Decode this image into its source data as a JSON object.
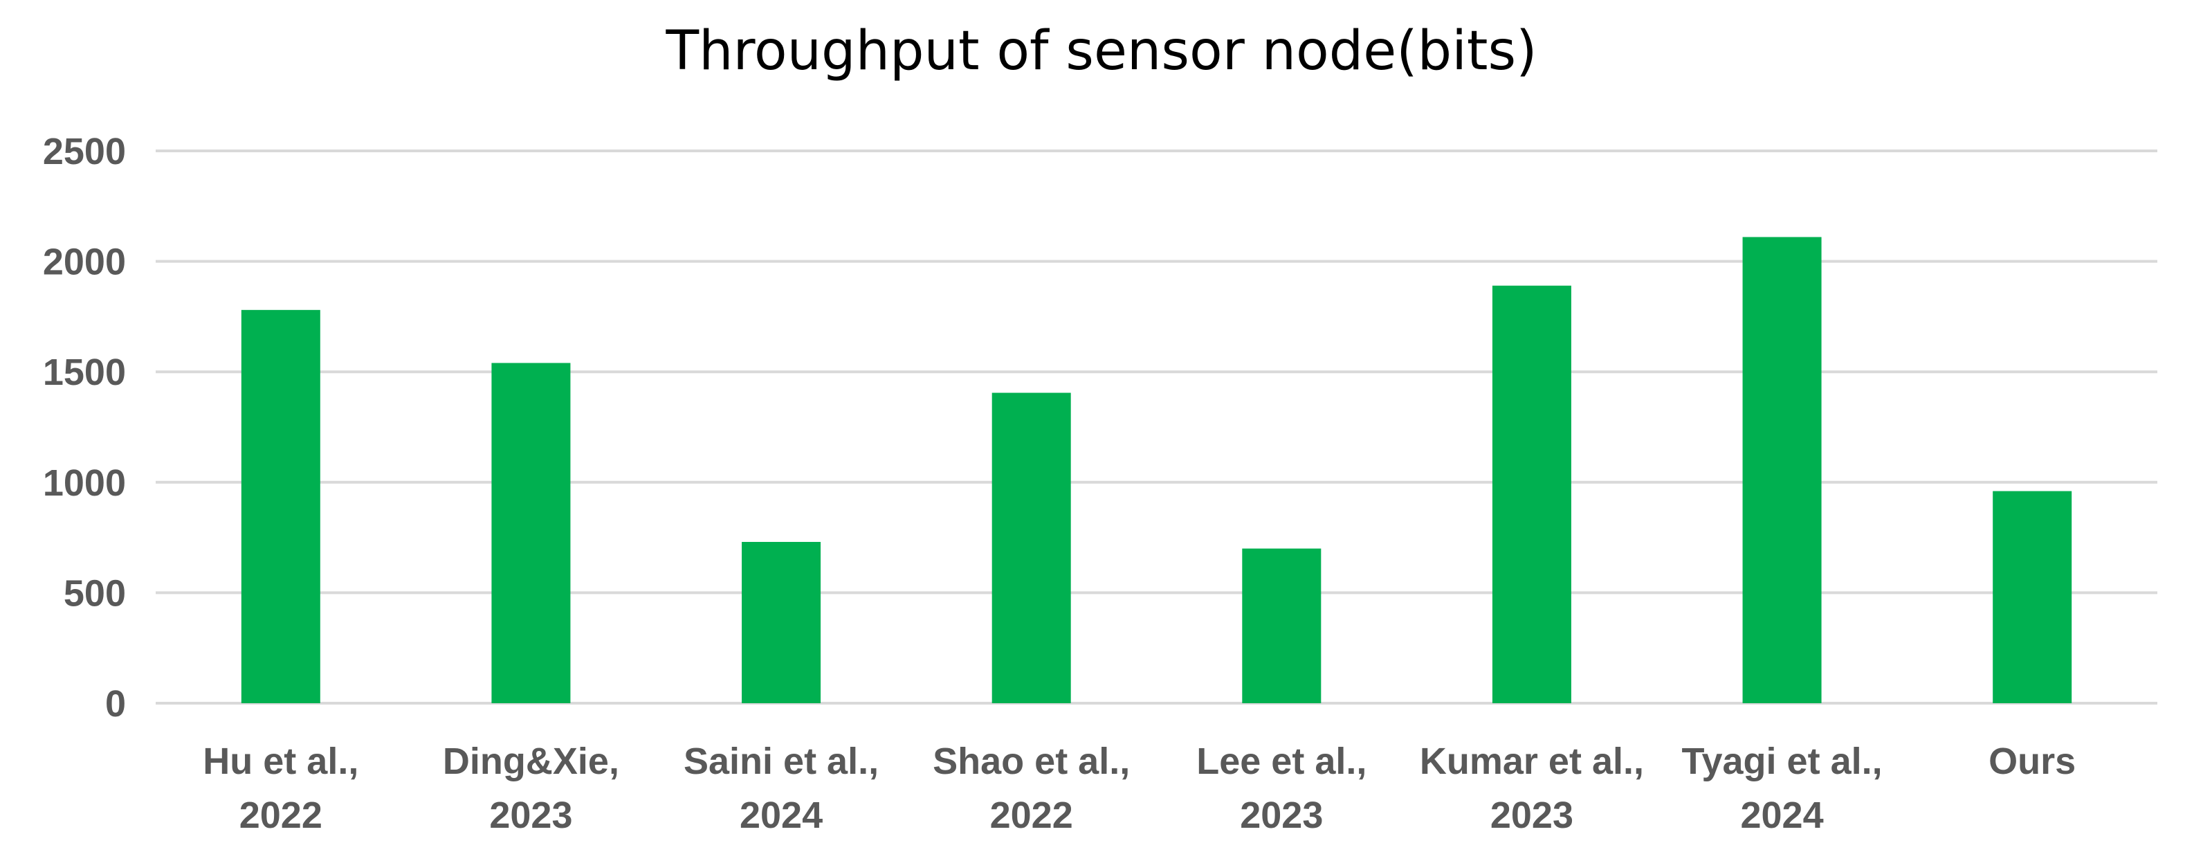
{
  "chart_data": {
    "type": "bar",
    "title": "Throughput of sensor node(bits)",
    "categories": [
      [
        "Hu et al.,",
        "2022"
      ],
      [
        "Ding&Xie,",
        "2023"
      ],
      [
        "Saini et al.,",
        "2024"
      ],
      [
        "Shao et al.,",
        "2022"
      ],
      [
        "Lee et al.,",
        "2023"
      ],
      [
        "Kumar et al.,",
        "2023"
      ],
      [
        "Tyagi et al.,",
        "2024"
      ],
      [
        "Ours"
      ]
    ],
    "values": [
      1780,
      1540,
      730,
      1405,
      700,
      1890,
      2110,
      960
    ],
    "xlabel": "",
    "ylabel": "",
    "ylim": [
      0,
      2500
    ],
    "yticks": [
      0,
      500,
      1000,
      1500,
      2000,
      2500
    ],
    "grid": true,
    "legend": "none",
    "colors": {
      "bar": "#00B050",
      "grid": "#D9D9D9",
      "tick_text": "#595959",
      "title_text": "#000000"
    }
  }
}
